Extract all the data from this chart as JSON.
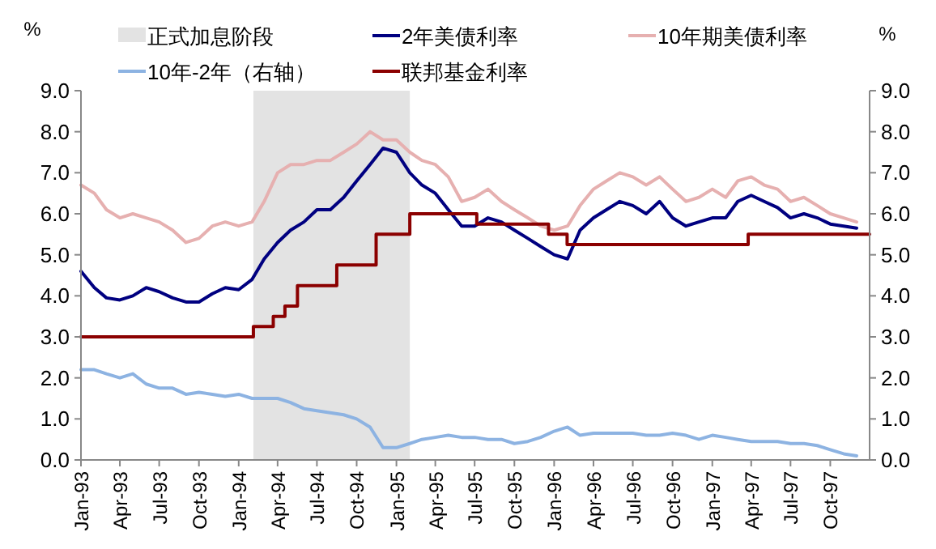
{
  "chart_data": {
    "type": "line",
    "ylabel": "%",
    "y2label": "%",
    "x": [
      "1993-01",
      "1993-02",
      "1993-03",
      "1993-04",
      "1993-05",
      "1993-06",
      "1993-07",
      "1993-08",
      "1993-09",
      "1993-10",
      "1993-11",
      "1993-12",
      "1994-01",
      "1994-02",
      "1994-03",
      "1994-04",
      "1994-05",
      "1994-06",
      "1994-07",
      "1994-08",
      "1994-09",
      "1994-10",
      "1994-11",
      "1994-12",
      "1995-01",
      "1995-02",
      "1995-03",
      "1995-04",
      "1995-05",
      "1995-06",
      "1995-07",
      "1995-08",
      "1995-09",
      "1995-10",
      "1995-11",
      "1995-12",
      "1996-01",
      "1996-02",
      "1996-03",
      "1996-04",
      "1996-05",
      "1996-06",
      "1996-07",
      "1996-08",
      "1996-09",
      "1996-10",
      "1996-11",
      "1996-12",
      "1997-01",
      "1997-02",
      "1997-03",
      "1997-04",
      "1997-05",
      "1997-06",
      "1997-07",
      "1997-08",
      "1997-09",
      "1997-10",
      "1997-11",
      "1997-12"
    ],
    "series": [
      {
        "name": "2年美债利率",
        "color": "#000080",
        "values": [
          4.6,
          4.2,
          3.95,
          3.9,
          4.0,
          4.2,
          4.1,
          3.95,
          3.85,
          3.85,
          4.05,
          4.2,
          4.15,
          4.4,
          4.9,
          5.3,
          5.6,
          5.8,
          6.1,
          6.1,
          6.4,
          6.8,
          7.2,
          7.6,
          7.5,
          7.0,
          6.7,
          6.5,
          6.1,
          5.7,
          5.7,
          5.9,
          5.8,
          5.6,
          5.4,
          5.2,
          5.0,
          4.9,
          5.6,
          5.9,
          6.1,
          6.3,
          6.2,
          6.0,
          6.3,
          5.9,
          5.7,
          5.8,
          5.9,
          5.9,
          6.3,
          6.45,
          6.3,
          6.15,
          5.9,
          6.0,
          5.9,
          5.75,
          5.7,
          5.65
        ]
      },
      {
        "name": "10年期美债利率",
        "color": "#e6b0b0",
        "values": [
          6.7,
          6.5,
          6.1,
          5.9,
          6.0,
          5.9,
          5.8,
          5.6,
          5.3,
          5.4,
          5.7,
          5.8,
          5.7,
          5.8,
          6.3,
          7.0,
          7.2,
          7.2,
          7.3,
          7.3,
          7.5,
          7.7,
          8.0,
          7.8,
          7.8,
          7.5,
          7.3,
          7.2,
          6.9,
          6.3,
          6.4,
          6.6,
          6.3,
          6.1,
          5.9,
          5.7,
          5.6,
          5.7,
          6.2,
          6.6,
          6.8,
          7.0,
          6.9,
          6.7,
          6.9,
          6.6,
          6.3,
          6.4,
          6.6,
          6.4,
          6.8,
          6.9,
          6.7,
          6.6,
          6.3,
          6.4,
          6.2,
          6.0,
          5.9,
          5.8
        ]
      },
      {
        "name": "10年-2年（右轴）",
        "color": "#8db3e2",
        "axis": "y2",
        "values": [
          2.2,
          2.2,
          2.1,
          2.0,
          2.1,
          1.85,
          1.75,
          1.75,
          1.6,
          1.65,
          1.6,
          1.55,
          1.6,
          1.5,
          1.5,
          1.5,
          1.4,
          1.25,
          1.2,
          1.15,
          1.1,
          1.0,
          0.8,
          0.3,
          0.3,
          0.4,
          0.5,
          0.55,
          0.6,
          0.55,
          0.55,
          0.5,
          0.5,
          0.4,
          0.45,
          0.55,
          0.7,
          0.8,
          0.6,
          0.65,
          0.65,
          0.65,
          0.65,
          0.6,
          0.6,
          0.65,
          0.6,
          0.5,
          0.6,
          0.55,
          0.5,
          0.45,
          0.45,
          0.45,
          0.4,
          0.4,
          0.35,
          0.25,
          0.15,
          0.1
        ]
      },
      {
        "name": "联邦基金利率",
        "color": "#8b0000",
        "type": "step",
        "x": [
          "1993-01-01",
          "1994-02-04",
          "1994-03-22",
          "1994-04-18",
          "1994-05-17",
          "1994-08-16",
          "1994-11-15",
          "1995-02-01",
          "1995-07-06",
          "1995-12-19",
          "1996-01-31",
          "1997-03-25",
          "1997-12-31"
        ],
        "values": [
          3.0,
          3.25,
          3.5,
          3.75,
          4.25,
          4.75,
          5.5,
          6.0,
          5.75,
          5.5,
          5.25,
          5.5,
          5.5
        ]
      }
    ],
    "bands": [
      {
        "axis": "x",
        "from": "1994-02-04",
        "to": "1995-02-01",
        "label": "正式加息阶段",
        "color": "#e3e3e3"
      }
    ],
    "xlim": [
      "1993-01-01",
      "1997-12-31"
    ],
    "xticks": [
      {
        "value": "1993-01",
        "label": "Jan-93"
      },
      {
        "value": "1993-04",
        "label": "Apr-93"
      },
      {
        "value": "1993-07",
        "label": "Jul-93"
      },
      {
        "value": "1993-10",
        "label": "Oct-93"
      },
      {
        "value": "1994-01",
        "label": "Jan-94"
      },
      {
        "value": "1994-04",
        "label": "Apr-94"
      },
      {
        "value": "1994-07",
        "label": "Jul-94"
      },
      {
        "value": "1994-10",
        "label": "Oct-94"
      },
      {
        "value": "1995-01",
        "label": "Jan-95"
      },
      {
        "value": "1995-04",
        "label": "Apr-95"
      },
      {
        "value": "1995-07",
        "label": "Jul-95"
      },
      {
        "value": "1995-10",
        "label": "Oct-95"
      },
      {
        "value": "1996-01",
        "label": "Jan-96"
      },
      {
        "value": "1996-04",
        "label": "Apr-96"
      },
      {
        "value": "1996-07",
        "label": "Jul-96"
      },
      {
        "value": "1996-10",
        "label": "Oct-96"
      },
      {
        "value": "1997-01",
        "label": "Jan-97"
      },
      {
        "value": "1997-04",
        "label": "Apr-97"
      },
      {
        "value": "1997-07",
        "label": "Jul-97"
      },
      {
        "value": "1997-10",
        "label": "Oct-97"
      }
    ],
    "ylim": [
      0,
      9
    ],
    "yticks": [
      {
        "value": 0,
        "label": "0.0"
      },
      {
        "value": 1,
        "label": "1.0"
      },
      {
        "value": 2,
        "label": "2.0"
      },
      {
        "value": 3,
        "label": "3.0"
      },
      {
        "value": 4,
        "label": "4.0"
      },
      {
        "value": 5,
        "label": "5.0"
      },
      {
        "value": 6,
        "label": "6.0"
      },
      {
        "value": 7,
        "label": "7.0"
      },
      {
        "value": 8,
        "label": "8.0"
      },
      {
        "value": 9,
        "label": "9.0"
      }
    ],
    "y2lim": [
      0,
      9
    ],
    "y2ticks": [
      {
        "value": 0,
        "label": "0.0"
      },
      {
        "value": 1,
        "label": "1.0"
      },
      {
        "value": 2,
        "label": "2.0"
      },
      {
        "value": 3,
        "label": "3.0"
      },
      {
        "value": 4,
        "label": "4.0"
      },
      {
        "value": 5,
        "label": "5.0"
      },
      {
        "value": 6,
        "label": "6.0"
      },
      {
        "value": 7,
        "label": "7.0"
      },
      {
        "value": 8,
        "label": "8.0"
      },
      {
        "value": 9,
        "label": "9.0"
      }
    ],
    "legend": "top",
    "grid": false
  }
}
